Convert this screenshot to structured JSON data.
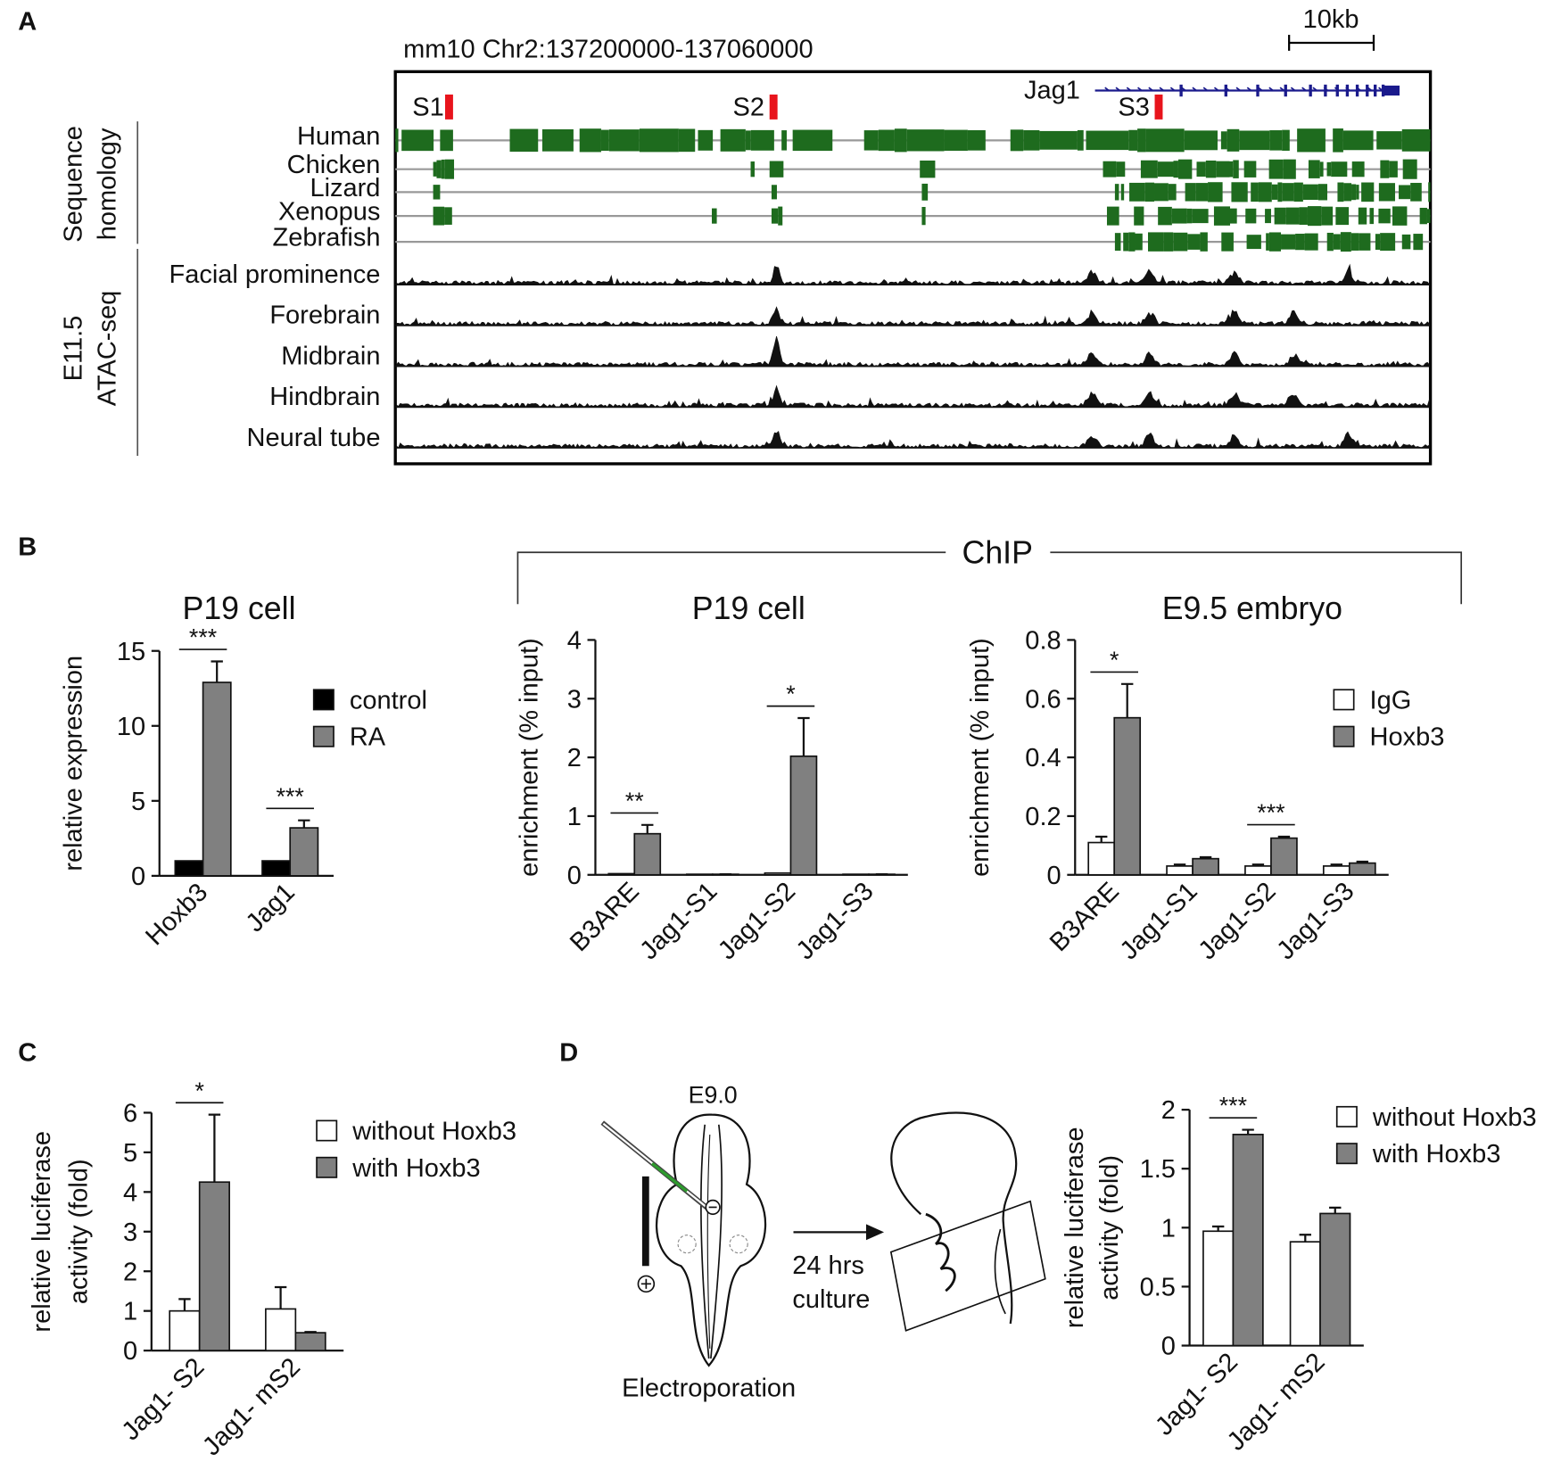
{
  "panel_labels": [
    "A",
    "B",
    "C",
    "D"
  ],
  "genome": {
    "coordinates": "mm10 Chr2:137200000-137060000",
    "scale": "10kb",
    "gene": "Jag1",
    "sites": [
      "S1",
      "S2",
      "S3"
    ],
    "groups": [
      [
        "Sequence",
        "homology"
      ],
      [
        "E11.5",
        "ATAC-seq"
      ]
    ],
    "homology_tracks": [
      "Human",
      "Chicken",
      "Lizard",
      "Xenopus",
      "Zebrafish"
    ],
    "atac_tracks": [
      "Facial prominence",
      "Forebrain",
      "Midbrain",
      "Hindbrain",
      "Neural tube"
    ]
  },
  "chip_label": "ChIP",
  "schematic": {
    "stage": "E9.0",
    "arrow_label": [
      "24 hrs",
      "culture"
    ],
    "caption": "Electroporation"
  },
  "chart_data": [
    {
      "type": "bar",
      "title": "P19 cell",
      "y_label": [
        "relative expression"
      ],
      "categories": [
        "Hoxb3",
        "Jag1"
      ],
      "series": [
        {
          "name": "control",
          "color": "#000000",
          "values": [
            1,
            1
          ]
        },
        {
          "name": "RA",
          "color": "#808080",
          "values": [
            12.9,
            3.2
          ],
          "errors": [
            1.4,
            0.5
          ]
        }
      ],
      "significance": [
        "***",
        "***"
      ],
      "ylim": [
        0,
        15
      ],
      "yticks": [
        0,
        5,
        10,
        15
      ]
    },
    {
      "type": "bar",
      "title": "P19 cell",
      "y_label": [
        "enrichment (% input)"
      ],
      "categories": [
        "B3ARE",
        "Jag1-S1",
        "Jag1-S2",
        "Jag1-S3"
      ],
      "series": [
        {
          "color": "#ffffff",
          "values": [
            0.02,
            0.01,
            0.03,
            0.01
          ]
        },
        {
          "color": "#808080",
          "values": [
            0.7,
            0.01,
            2.02,
            0.01
          ],
          "errors": [
            0.15,
            0,
            0.65,
            0
          ]
        }
      ],
      "significance": [
        "**",
        null,
        "*",
        null
      ],
      "ylim": [
        0,
        4
      ],
      "yticks": [
        0,
        1,
        2,
        3,
        4
      ]
    },
    {
      "type": "bar",
      "title": "E9.5 embryo",
      "y_label": [
        "enrichment (% input)"
      ],
      "categories": [
        "B3ARE",
        "Jag1-S1",
        "Jag1-S2",
        "Jag1-S3"
      ],
      "series": [
        {
          "name": "IgG",
          "color": "#ffffff",
          "values": [
            0.11,
            0.03,
            0.03,
            0.03
          ],
          "errors": [
            0.02,
            0.005,
            0.005,
            0.005
          ]
        },
        {
          "name": "Hoxb3",
          "color": "#808080",
          "values": [
            0.535,
            0.055,
            0.125,
            0.04
          ],
          "errors": [
            0.115,
            0.005,
            0.005,
            0.005
          ]
        }
      ],
      "significance": [
        "*",
        null,
        "***",
        null
      ],
      "ylim": [
        0,
        0.8
      ],
      "yticks": [
        0,
        0.2,
        0.4,
        0.6,
        0.8
      ]
    },
    {
      "type": "bar",
      "y_label": [
        "relative luciferase",
        "activity (fold)"
      ],
      "categories": [
        "Jag1- S2",
        "Jag1- mS2"
      ],
      "series": [
        {
          "name": "without Hoxb3",
          "color": "#ffffff",
          "values": [
            1.0,
            1.05
          ],
          "errors": [
            0.3,
            0.55
          ]
        },
        {
          "name": "with Hoxb3",
          "color": "#808080",
          "values": [
            4.25,
            0.45
          ],
          "errors": [
            1.7,
            0.02
          ]
        }
      ],
      "significance": [
        "*",
        null
      ],
      "ylim": [
        0,
        6
      ],
      "yticks": [
        0,
        1,
        2,
        3,
        4,
        5,
        6
      ]
    },
    {
      "type": "bar",
      "y_label": [
        "relative luciferase",
        "activity (fold)"
      ],
      "categories": [
        "Jag1- S2",
        "Jag1- mS2"
      ],
      "series": [
        {
          "name": "without Hoxb3",
          "color": "#ffffff",
          "values": [
            0.97,
            0.88
          ],
          "errors": [
            0.04,
            0.06
          ]
        },
        {
          "name": "with Hoxb3",
          "color": "#808080",
          "values": [
            1.79,
            1.12
          ],
          "errors": [
            0.04,
            0.05
          ]
        }
      ],
      "significance": [
        "***",
        null
      ],
      "ylim": [
        0,
        2
      ],
      "yticks": [
        0,
        0.5,
        1,
        1.5,
        2
      ]
    }
  ]
}
